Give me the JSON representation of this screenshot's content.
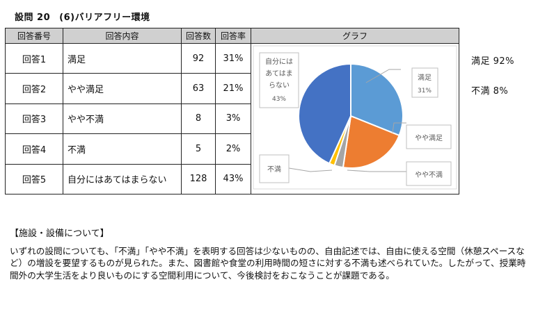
{
  "header": {
    "title": "設問 20",
    "subtitle": "(6)バリアフリー環境"
  },
  "table": {
    "headers": [
      "回答番号",
      "回答内容",
      "回答数",
      "回答率",
      "グラフ"
    ],
    "rows": [
      {
        "no": "回答1",
        "label": "満足",
        "count": "92",
        "rate": "31%"
      },
      {
        "no": "回答2",
        "label": "やや満足",
        "count": "63",
        "rate": "21%"
      },
      {
        "no": "回答3",
        "label": "やや不満",
        "count": "8",
        "rate": "3%"
      },
      {
        "no": "回答4",
        "label": "不満",
        "count": "5",
        "rate": "2%"
      },
      {
        "no": "回答5",
        "label": "自分にはあてはまらない",
        "count": "128",
        "rate": "43%"
      }
    ]
  },
  "side_notes": {
    "satisfied": "満足 92%",
    "dissatisfied": "不満 8%"
  },
  "chart_data": {
    "type": "pie",
    "categories": [
      "満足",
      "やや満足",
      "やや不満",
      "不満",
      "自分にはあてはまらない"
    ],
    "values": [
      92,
      63,
      8,
      5,
      128
    ],
    "colors": [
      "#5b9bd5",
      "#ed7d31",
      "#a5a5a5",
      "#ffc000",
      "#4472c4"
    ],
    "data_labels": {
      "satisfied": {
        "name": "満足",
        "pct": "31%"
      },
      "somewhat_satisfied": "やや満足",
      "somewhat_dissatisfied": "やや不満",
      "dissatisfied": "不満",
      "not_applicable": {
        "lines": [
          "自分には",
          "あてはま",
          "らない"
        ],
        "pct": "43%"
      }
    }
  },
  "section_title": "【施設・設備について】",
  "paragraph": "いずれの設問についても、「不満」「やや不満」を表明する回答は少ないものの、自由記述では、自由に使える空間（休憩スペースなど）の増設を要望するものが見られた。また、図書館や食堂の利用時間の短さに対する不満も述べられていた。したがって、授業時間外の大学生活をより良いものにする空間利用について、今後検討をおこなうことが課題である。"
}
